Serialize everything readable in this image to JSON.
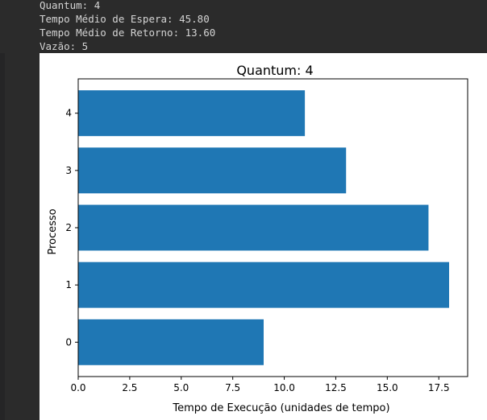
{
  "console": {
    "lines": [
      "Quantum: 4",
      "Tempo Médio de Espera: 45.80",
      "Tempo Médio de Retorno: 13.60",
      "Vazão: 5"
    ]
  },
  "chart_data": {
    "type": "bar",
    "orientation": "horizontal",
    "title": "Quantum: 4",
    "xlabel": "Tempo de Execução (unidades de tempo)",
    "ylabel": "Processo",
    "categories": [
      "0",
      "1",
      "2",
      "3",
      "4"
    ],
    "values": [
      9,
      18,
      17,
      13,
      11
    ],
    "xlim": [
      0,
      18.9
    ],
    "xticks": [
      "0.0",
      "2.5",
      "5.0",
      "7.5",
      "10.0",
      "12.5",
      "15.0",
      "17.5"
    ],
    "xtick_values": [
      0,
      2.5,
      5,
      7.5,
      10,
      12.5,
      15,
      17.5
    ],
    "bar_color": "#1f77b4",
    "grid": false
  }
}
